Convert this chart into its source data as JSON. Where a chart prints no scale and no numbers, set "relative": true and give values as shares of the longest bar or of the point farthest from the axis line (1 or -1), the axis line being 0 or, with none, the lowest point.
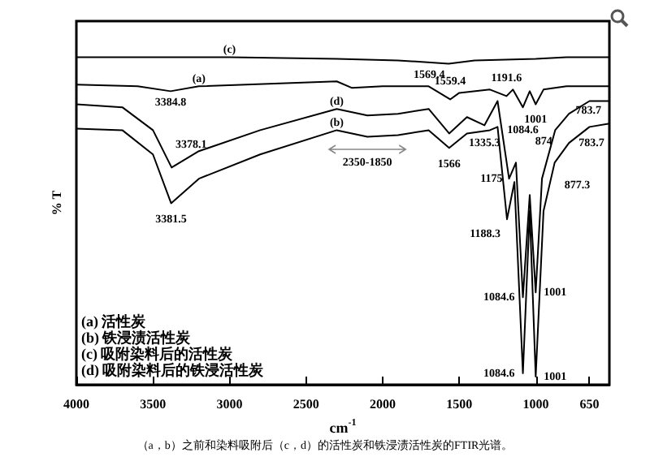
{
  "chart_data": {
    "type": "line",
    "relative": true,
    "xlabel": "cm$^{-1}$",
    "ylabel": "% T",
    "xlim": [
      4000,
      520
    ],
    "xticks": [
      4000,
      3500,
      3000,
      2500,
      2000,
      1500,
      1000,
      650
    ],
    "grid": false,
    "marker": "none",
    "line_style": "solid",
    "series": [
      {
        "name": "(a)",
        "color": "#000000",
        "x": [
          4000,
          3600,
          3384.8,
          3200,
          2300,
          2200,
          2000,
          1700,
          1559.4,
          1500,
          1300,
          1191.6,
          1150,
          1084.6,
          1040,
          1001,
          950,
          800,
          520
        ],
        "values": [
          0.916,
          0.911,
          0.896,
          0.911,
          0.926,
          0.906,
          0.911,
          0.911,
          0.871,
          0.891,
          0.901,
          0.881,
          0.901,
          0.847,
          0.896,
          0.856,
          0.901,
          0.911,
          0.911
        ]
      },
      {
        "name": "(b)",
        "color": "#000000",
        "x": [
          4000,
          3700,
          3500,
          3381.5,
          3200,
          2800,
          2300,
          2100,
          1900,
          1700,
          1566,
          1450,
          1300,
          1250,
          1188.3,
          1140,
          1084.6,
          1040,
          1001,
          950,
          877.3,
          783.7,
          650,
          520
        ],
        "values": [
          0.782,
          0.777,
          0.703,
          0.554,
          0.629,
          0.703,
          0.777,
          0.757,
          0.762,
          0.777,
          0.723,
          0.767,
          0.777,
          0.787,
          0.505,
          0.619,
          0.035,
          0.53,
          0.025,
          0.53,
          0.678,
          0.738,
          0.787,
          0.797
        ]
      },
      {
        "name": "(c)",
        "color": "#000000",
        "x": [
          4000,
          3000,
          2300,
          1900,
          1569.4,
          1400,
          1000,
          800,
          520
        ],
        "values": [
          1.0,
          1.0,
          0.995,
          0.99,
          0.98,
          0.99,
          0.995,
          1.0,
          1.0
        ]
      },
      {
        "name": "(d)",
        "color": "#000000",
        "x": [
          4000,
          3700,
          3500,
          3378.1,
          3200,
          2800,
          2300,
          2100,
          1900,
          1700,
          1566,
          1450,
          1335.3,
          1250,
          1175,
          1130,
          1084.6,
          1040,
          1001,
          960,
          874,
          783.7,
          650,
          520
        ],
        "values": [
          0.856,
          0.847,
          0.777,
          0.663,
          0.713,
          0.777,
          0.842,
          0.822,
          0.827,
          0.842,
          0.767,
          0.817,
          0.792,
          0.866,
          0.629,
          0.678,
          0.267,
          0.579,
          0.282,
          0.629,
          0.777,
          0.827,
          0.866,
          0.866
        ]
      }
    ],
    "annotations": [
      {
        "text": "1569.4",
        "x": 1569.4,
        "y": 0.98
      },
      {
        "text": "1559.4",
        "x": 1559.4,
        "y": 0.871
      },
      {
        "text": "1191.6",
        "x": 1191.6,
        "y": 0.881
      },
      {
        "text": "3384.8",
        "x": 3384.8,
        "y": 0.896
      },
      {
        "text": "1001",
        "x": 1001,
        "y": 0.856
      },
      {
        "text": "1084.6",
        "x": 1084.6,
        "y": 0.847
      },
      {
        "text": "874",
        "x": 874,
        "y": 0.777
      },
      {
        "text": "783.7",
        "x": 783.7,
        "y": 0.827
      },
      {
        "text": "3378.1",
        "x": 3378.1,
        "y": 0.663
      },
      {
        "text": "3381.5",
        "x": 3381.5,
        "y": 0.554
      },
      {
        "text": "1566",
        "x": 1566,
        "y": 0.723
      },
      {
        "text": "1335.3",
        "x": 1335.3,
        "y": 0.792
      },
      {
        "text": "1175",
        "x": 1175,
        "y": 0.629
      },
      {
        "text": "1188.3",
        "x": 1188.3,
        "y": 0.505
      },
      {
        "text": "877.3",
        "x": 877.3,
        "y": 0.678
      },
      {
        "text": "783.7",
        "x": 783.7,
        "y": 0.738
      },
      {
        "text": "1084.6",
        "x": 1084.6,
        "y": 0.267
      },
      {
        "text": "1001",
        "x": 1001,
        "y": 0.282
      },
      {
        "text": "1084.6",
        "x": 1084.6,
        "y": 0.035
      },
      {
        "text": "1001",
        "x": 1001,
        "y": 0.025
      },
      "2350-1850",
      "(a) 活性炭",
      "(b) 铁浸渍活性炭",
      "(c) 吸附染料后的活性炭",
      "(d) 吸附染料后的铁浸活性炭",
      "（a，b）之前和染料吸附后（c，d）的活性炭和铁浸渍活性炭的FTIR光谱。"
    ]
  }
}
